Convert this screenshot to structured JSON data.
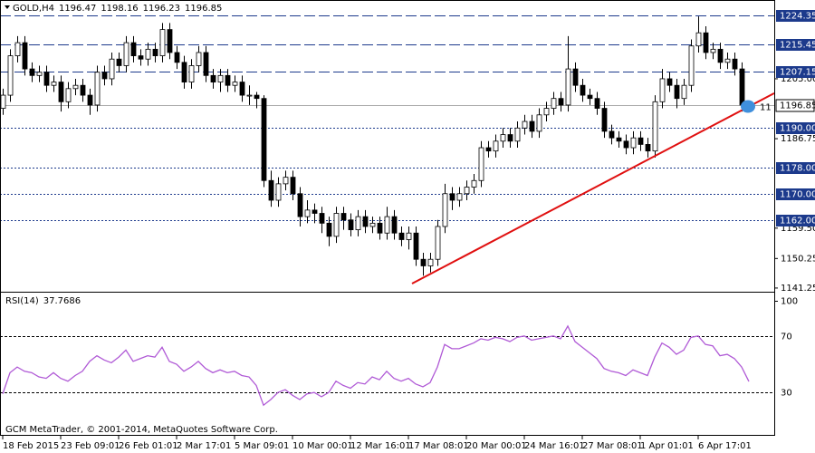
{
  "chart_data": {
    "type": "candlestick",
    "title": "GOLD,H4",
    "header_values": [
      1196.47,
      1198.16,
      1196.23,
      1196.85
    ],
    "categories": [
      "18 Feb 2015",
      null,
      null,
      null,
      null,
      null,
      null,
      null,
      "23 Feb 09:01",
      null,
      null,
      null,
      null,
      null,
      null,
      null,
      "26 Feb 01:01",
      null,
      null,
      null,
      null,
      null,
      null,
      null,
      "2 Mar 17:01",
      null,
      null,
      null,
      null,
      null,
      null,
      null,
      "5 Mar 09:01",
      null,
      null,
      null,
      null,
      null,
      null,
      null,
      "10 Mar 00:01",
      null,
      null,
      null,
      null,
      null,
      null,
      null,
      "12 Mar 16:01",
      null,
      null,
      null,
      null,
      null,
      null,
      null,
      "17 Mar 08:01",
      null,
      null,
      null,
      null,
      null,
      null,
      null,
      "20 Mar 00:01",
      null,
      null,
      null,
      null,
      null,
      null,
      null,
      "24 Mar 16:01",
      null,
      null,
      null,
      null,
      null,
      null,
      null,
      "27 Mar 08:01",
      null,
      null,
      null,
      null,
      null,
      null,
      null,
      "1 Apr 01:01",
      null,
      null,
      null,
      null,
      null,
      null,
      null,
      "6 Apr 17:01",
      null,
      null,
      null,
      null,
      null,
      null,
      null
    ],
    "open": [
      1196,
      1200,
      1212,
      1216,
      1208,
      1206,
      1207,
      1203,
      1204,
      1198,
      1202,
      1203,
      1200,
      1197,
      1207,
      1205,
      1211,
      1209,
      1216,
      1212,
      1211,
      1214,
      1212,
      1220,
      1213,
      1210,
      1204,
      1209,
      1213,
      1206,
      1204,
      1206,
      1203,
      1204,
      1200,
      1200,
      1199,
      1174,
      1168,
      1173,
      1175,
      1170,
      1163,
      1165,
      1164,
      1161,
      1157,
      1164,
      1162,
      1159,
      1163,
      1160,
      1161,
      1158,
      1163,
      1158,
      1156,
      1158,
      1150,
      1148,
      1150,
      1160,
      1170,
      1168,
      1170,
      1172,
      1174,
      1184,
      1183,
      1186,
      1188,
      1186,
      1190,
      1192,
      1189,
      1194,
      1196,
      1199,
      1197,
      1208,
      1203,
      1200,
      1199,
      1196,
      1189,
      1187,
      1186,
      1184,
      1187,
      1185,
      1183,
      1198,
      1205,
      1203,
      1199,
      1203,
      1215,
      1219,
      1213,
      1214,
      1210,
      1211,
      1208,
      1196.47
    ],
    "high": [
      1202,
      1214,
      1218,
      1218,
      1210,
      1209,
      1209,
      1206,
      1206,
      1204,
      1205,
      1205,
      1202,
      1209,
      1209,
      1213,
      1213,
      1218,
      1218,
      1214,
      1216,
      1216,
      1222,
      1222,
      1215,
      1212,
      1211,
      1215,
      1215,
      1208,
      1208,
      1208,
      1206,
      1206,
      1203,
      1201,
      1200,
      1177,
      1175,
      1177,
      1177,
      1172,
      1168,
      1167,
      1166,
      1163,
      1166,
      1166,
      1164,
      1165,
      1165,
      1163,
      1163,
      1166,
      1165,
      1160,
      1160,
      1160,
      1152,
      1152,
      1162,
      1173,
      1172,
      1172,
      1174,
      1176,
      1186,
      1186,
      1188,
      1190,
      1190,
      1192,
      1194,
      1194,
      1196,
      1198,
      1201,
      1201,
      1218,
      1210,
      1205,
      1202,
      1201,
      1198,
      1191,
      1189,
      1188,
      1189,
      1189,
      1187,
      1200,
      1208,
      1207,
      1205,
      1205,
      1217,
      1224,
      1221,
      1216,
      1216,
      1213,
      1213,
      1210,
      1198.16
    ],
    "low": [
      1194,
      1198,
      1210,
      1206,
      1204,
      1204,
      1201,
      1201,
      1195,
      1196,
      1200,
      1198,
      1194,
      1195,
      1203,
      1203,
      1207,
      1207,
      1210,
      1209,
      1209,
      1210,
      1210,
      1211,
      1208,
      1202,
      1202,
      1207,
      1204,
      1202,
      1201,
      1201,
      1201,
      1198,
      1197,
      1196,
      1172,
      1166,
      1166,
      1171,
      1168,
      1160,
      1161,
      1161,
      1158,
      1154,
      1155,
      1159,
      1157,
      1157,
      1158,
      1158,
      1156,
      1156,
      1156,
      1154,
      1153,
      1148,
      1145,
      1146,
      1148,
      1158,
      1165,
      1166,
      1168,
      1170,
      1172,
      1181,
      1181,
      1184,
      1184,
      1184,
      1188,
      1187,
      1187,
      1192,
      1194,
      1195,
      1195,
      1201,
      1198,
      1197,
      1194,
      1187,
      1185,
      1184,
      1182,
      1182,
      1183,
      1181,
      1181,
      1196,
      1201,
      1196,
      1197,
      1201,
      1213,
      1211,
      1211,
      1208,
      1208,
      1206,
      1195,
      1196.23
    ],
    "close": [
      1200,
      1212,
      1216,
      1208,
      1206,
      1207,
      1203,
      1204,
      1198,
      1202,
      1203,
      1200,
      1197,
      1207,
      1205,
      1211,
      1209,
      1216,
      1212,
      1211,
      1214,
      1212,
      1220,
      1213,
      1210,
      1204,
      1209,
      1213,
      1206,
      1204,
      1206,
      1203,
      1204,
      1200,
      1200,
      1199,
      1174,
      1168,
      1173,
      1175,
      1170,
      1163,
      1165,
      1164,
      1161,
      1157,
      1164,
      1162,
      1159,
      1163,
      1160,
      1161,
      1158,
      1163,
      1158,
      1156,
      1158,
      1150,
      1148,
      1150,
      1160,
      1170,
      1168,
      1170,
      1172,
      1174,
      1184,
      1183,
      1186,
      1188,
      1186,
      1190,
      1192,
      1189,
      1194,
      1196,
      1199,
      1197,
      1208,
      1203,
      1200,
      1199,
      1196,
      1189,
      1187,
      1186,
      1184,
      1187,
      1185,
      1183,
      1198,
      1205,
      1203,
      1199,
      1203,
      1215,
      1219,
      1213,
      1214,
      1210,
      1211,
      1208,
      1197,
      1196.85
    ],
    "ylim": [
      1140.4,
      1229.0
    ],
    "yticks": [
      1141.25,
      1150.25,
      {
        "value": 1159.5,
        "label": "1159.50"
      },
      1186.75,
      {
        "value": 1205,
        "label": "1205.00"
      }
    ],
    "long_dash_levels": [
      1224.35,
      1215.45,
      1207.15
    ],
    "short_dash_levels": [
      {
        "value": 1190,
        "label": "1190.00"
      },
      {
        "value": 1178,
        "label": "1178.00"
      },
      {
        "value": 1170,
        "label": "1170.00"
      },
      {
        "value": 1162,
        "label": "1162.00"
      }
    ],
    "level_color": "#1c3a8c",
    "last_price": 1196.85,
    "trendline": {
      "x": [
        56.5,
        106.5
      ],
      "y": [
        1142.6,
        1200.6
      ],
      "color": "#e01010"
    },
    "annotation": "11",
    "rsi": {
      "title": "RSI(14)",
      "value": 37.7686,
      "color": "#b05ad6",
      "values": [
        29,
        44,
        48,
        45,
        44,
        41,
        40,
        44,
        40,
        38,
        42,
        45,
        52,
        56,
        53,
        51,
        55,
        60,
        52,
        54,
        56,
        55,
        62,
        52,
        50,
        45,
        48,
        52,
        47,
        44,
        46,
        44,
        45,
        42,
        41,
        35,
        21,
        25,
        30,
        32,
        28,
        25,
        29,
        30,
        27,
        30,
        38,
        35,
        33,
        37,
        36,
        41,
        39,
        45,
        40,
        38,
        40,
        36,
        34,
        37,
        48,
        64,
        61,
        61,
        63,
        65,
        68,
        67,
        69,
        68,
        66,
        69,
        70,
        67,
        68,
        69,
        70,
        68,
        77,
        66,
        62,
        58,
        54,
        47,
        45,
        44,
        42,
        46,
        44,
        42,
        55,
        65,
        62,
        57,
        60,
        69,
        70,
        64,
        63,
        56,
        57,
        54,
        48,
        37.7686
      ],
      "ylim": [
        0,
        100
      ],
      "yticks": [
        30,
        70,
        100
      ]
    },
    "footer": "GCM MetaTrader, © 2001-2014, MetaQuotes Software Corp."
  }
}
